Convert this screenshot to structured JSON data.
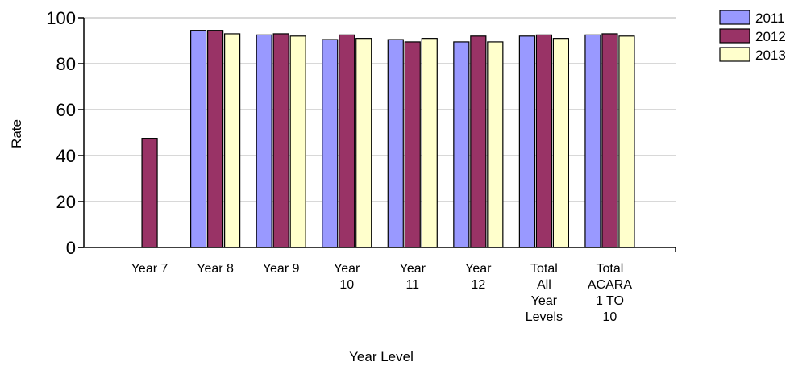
{
  "chart_data": {
    "type": "bar",
    "categories": [
      [
        "Year 7"
      ],
      [
        "Year 8"
      ],
      [
        "Year 9"
      ],
      [
        "Year",
        "10"
      ],
      [
        "Year",
        "11"
      ],
      [
        "Year",
        "12"
      ],
      [
        "Total",
        "All",
        "Year",
        "Levels"
      ],
      [
        "Total",
        "ACARA",
        "1 TO",
        "10"
      ]
    ],
    "series": [
      {
        "name": "2011",
        "color": "#9999ff",
        "values": [
          null,
          94.5,
          92.5,
          90.5,
          90.5,
          89.5,
          92.0,
          92.5
        ]
      },
      {
        "name": "2012",
        "color": "#993366",
        "values": [
          47.5,
          94.5,
          93.0,
          92.5,
          89.5,
          92.0,
          92.5,
          93.0
        ]
      },
      {
        "name": "2013",
        "color": "#ffffcc",
        "values": [
          null,
          93.0,
          92.0,
          91.0,
          91.0,
          89.5,
          91.0,
          92.0
        ]
      }
    ],
    "xlabel": "Year Level",
    "ylabel": "Rate",
    "ylim": [
      0,
      100
    ],
    "yticks": [
      0,
      20,
      40,
      60,
      80,
      100
    ],
    "grid": true,
    "legend_position": "top-right"
  }
}
